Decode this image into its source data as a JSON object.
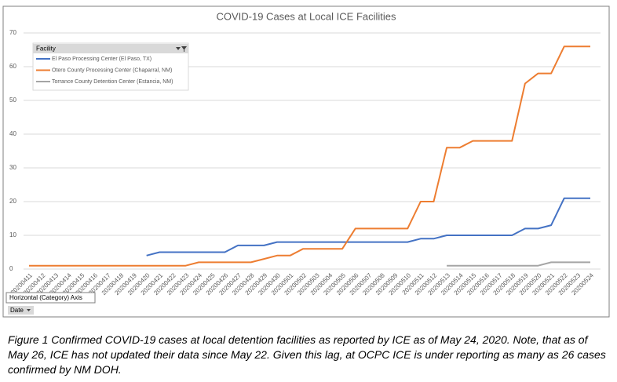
{
  "chart_data": {
    "type": "line",
    "title": "COVID-19 Cases at Local ICE Facilities",
    "legend_title": "Facility",
    "axis_tooltip": "Horizontal (Category) Axis",
    "axis_field": "Date",
    "categories": [
      "20200411",
      "20200412",
      "20200413",
      "20200414",
      "20200415",
      "20200416",
      "20200417",
      "20200418",
      "20200419",
      "20200420",
      "20200421",
      "20200422",
      "20200423",
      "20200424",
      "20200425",
      "20200426",
      "20200427",
      "20200428",
      "20200429",
      "20200430",
      "20200501",
      "20200502",
      "20200503",
      "20200504",
      "20200505",
      "20200506",
      "20200507",
      "20200508",
      "20200509",
      "20200510",
      "20200511",
      "20200512",
      "20200513",
      "20200514",
      "20200515",
      "20200516",
      "20200517",
      "20200518",
      "20200519",
      "20200520",
      "20200521",
      "20200522",
      "20200523",
      "20200524"
    ],
    "series": [
      {
        "name": "El Paso Processing Center (El Paso, TX)",
        "color": "#4472c4",
        "values": [
          null,
          null,
          null,
          null,
          null,
          null,
          null,
          null,
          null,
          4,
          5,
          5,
          5,
          5,
          5,
          5,
          7,
          7,
          7,
          8,
          8,
          8,
          8,
          8,
          8,
          8,
          8,
          8,
          8,
          8,
          9,
          9,
          10,
          10,
          10,
          10,
          10,
          10,
          12,
          12,
          13,
          21,
          21,
          21
        ]
      },
      {
        "name": "Otero County Processing Center (Chaparral, NM)",
        "color": "#ed7d31",
        "values": [
          1,
          1,
          1,
          1,
          1,
          1,
          1,
          1,
          1,
          1,
          1,
          1,
          1,
          2,
          2,
          2,
          2,
          2,
          3,
          4,
          4,
          6,
          6,
          6,
          6,
          12,
          12,
          12,
          12,
          12,
          20,
          20,
          36,
          36,
          38,
          38,
          38,
          38,
          55,
          58,
          58,
          66,
          66,
          66
        ]
      },
      {
        "name": "Torrance County Detention Center (Estancia, NM)",
        "color": "#a5a5a5",
        "values": [
          null,
          null,
          null,
          null,
          null,
          null,
          null,
          null,
          null,
          null,
          null,
          null,
          null,
          null,
          null,
          null,
          null,
          null,
          null,
          null,
          null,
          null,
          null,
          null,
          null,
          null,
          null,
          null,
          null,
          null,
          null,
          null,
          1,
          1,
          1,
          1,
          1,
          1,
          1,
          1,
          2,
          2,
          2,
          2
        ]
      }
    ],
    "ylim": [
      0,
      70
    ],
    "yticks": [
      0,
      10,
      20,
      30,
      40,
      50,
      60,
      70
    ],
    "grid": true
  },
  "caption": "Figure 1 Confirmed COVID-19 cases at local detention facilities as reported by ICE as of May 24, 2020. Note, that as of May 26, ICE has not updated their data since May 22. Given this lag, at OCPC ICE is under reporting as many as 26 cases confirmed by NM DOH."
}
